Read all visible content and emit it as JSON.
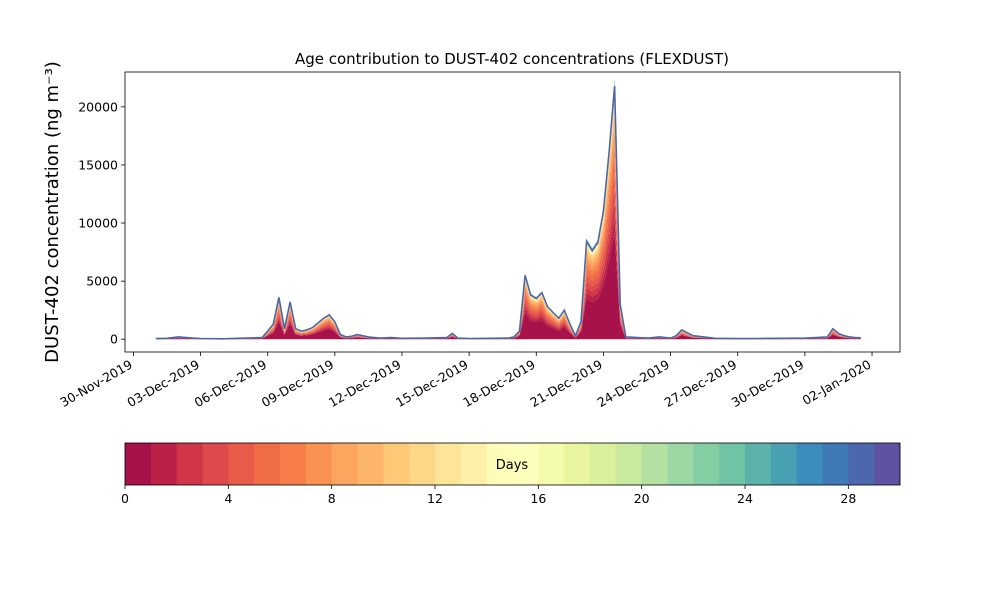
{
  "chart_data": {
    "type": "area",
    "title": "Age contribution to DUST-402 concentrations (FLEXDUST)",
    "ylabel": "DUST-402 concentration (ng m⁻³)",
    "xlabel": "",
    "ylim": [
      -1100,
      23000
    ],
    "xlim": [
      "2019-11-29T15:00",
      "2020-01-03T06:00"
    ],
    "x_ticks": [
      "30-Nov-2019",
      "03-Dec-2019",
      "06-Dec-2019",
      "09-Dec-2019",
      "12-Dec-2019",
      "15-Dec-2019",
      "18-Dec-2019",
      "21-Dec-2019",
      "24-Dec-2019",
      "27-Dec-2019",
      "30-Dec-2019",
      "02-Jan-2020"
    ],
    "y_ticks": [
      0,
      5000,
      10000,
      15000,
      20000
    ],
    "total_series": {
      "name": "Total",
      "color": "#4b67a6",
      "x": [
        "2019-12-01T00:00",
        "2019-12-01T12:00",
        "2019-12-02T00:00",
        "2019-12-02T12:00",
        "2019-12-03T00:00",
        "2019-12-04T00:00",
        "2019-12-05T00:00",
        "2019-12-05T18:00",
        "2019-12-06T00:00",
        "2019-12-06T06:00",
        "2019-12-06T12:00",
        "2019-12-06T18:00",
        "2019-12-07T00:00",
        "2019-12-07T06:00",
        "2019-12-07T12:00",
        "2019-12-07T18:00",
        "2019-12-08T00:00",
        "2019-12-08T12:00",
        "2019-12-08T18:00",
        "2019-12-09T00:00",
        "2019-12-09T06:00",
        "2019-12-09T12:00",
        "2019-12-09T18:00",
        "2019-12-10T00:00",
        "2019-12-10T12:00",
        "2019-12-11T00:00",
        "2019-12-11T12:00",
        "2019-12-12T00:00",
        "2019-12-13T00:00",
        "2019-12-14T00:00",
        "2019-12-14T06:00",
        "2019-12-14T12:00",
        "2019-12-15T00:00",
        "2019-12-16T00:00",
        "2019-12-16T18:00",
        "2019-12-17T00:00",
        "2019-12-17T06:00",
        "2019-12-17T12:00",
        "2019-12-17T18:00",
        "2019-12-18T00:00",
        "2019-12-18T06:00",
        "2019-12-18T12:00",
        "2019-12-18T18:00",
        "2019-12-19T00:00",
        "2019-12-19T06:00",
        "2019-12-19T12:00",
        "2019-12-19T18:00",
        "2019-12-20T00:00",
        "2019-12-20T06:00",
        "2019-12-20T12:00",
        "2019-12-20T18:00",
        "2019-12-21T00:00",
        "2019-12-21T06:00",
        "2019-12-21T12:00",
        "2019-12-21T18:00",
        "2019-12-22T00:00",
        "2019-12-22T12:00",
        "2019-12-23T00:00",
        "2019-12-23T12:00",
        "2019-12-24T00:00",
        "2019-12-24T06:00",
        "2019-12-24T12:00",
        "2019-12-25T00:00",
        "2019-12-26T00:00",
        "2019-12-27T00:00",
        "2019-12-28T00:00",
        "2019-12-29T00:00",
        "2019-12-30T00:00",
        "2019-12-30T12:00",
        "2019-12-31T00:00",
        "2019-12-31T06:00",
        "2019-12-31T12:00",
        "2019-12-31T18:00",
        "2020-01-01T00:00",
        "2020-01-01T06:00",
        "2020-01-01T12:00"
      ],
      "values": [
        50,
        80,
        200,
        120,
        60,
        40,
        100,
        150,
        700,
        1300,
        3600,
        900,
        3200,
        900,
        700,
        800,
        1000,
        1800,
        2100,
        1500,
        400,
        200,
        250,
        400,
        200,
        100,
        150,
        80,
        100,
        150,
        500,
        100,
        60,
        80,
        100,
        200,
        700,
        5500,
        3800,
        3500,
        4000,
        2800,
        2300,
        1800,
        2500,
        1300,
        300,
        1500,
        8400,
        7600,
        8300,
        11000,
        16000,
        21800,
        3000,
        200,
        150,
        100,
        200,
        100,
        300,
        800,
        300,
        80,
        50,
        60,
        80,
        100,
        150,
        200,
        900,
        500,
        300,
        200,
        150,
        120
      ]
    },
    "age_components": [
      {
        "age_days": "0-1",
        "color": "#a8124a",
        "fraction": 0.42
      },
      {
        "age_days": "1-2",
        "color": "#bd2047",
        "fraction": 0.06
      },
      {
        "age_days": "2-3",
        "color": "#d03648",
        "fraction": 0.06
      },
      {
        "age_days": "3-4",
        "color": "#de4a4c",
        "fraction": 0.06
      },
      {
        "age_days": "4-5",
        "color": "#e85b48",
        "fraction": 0.06
      },
      {
        "age_days": "5-6",
        "color": "#f16d45",
        "fraction": 0.06
      },
      {
        "age_days": "6-7",
        "color": "#f67d4a",
        "fraction": 0.05
      },
      {
        "age_days": "7-8",
        "color": "#f99153",
        "fraction": 0.05
      },
      {
        "age_days": "8-9",
        "color": "#fca55f",
        "fraction": 0.04
      },
      {
        "age_days": "9-10",
        "color": "#fdb56b",
        "fraction": 0.03
      },
      {
        "age_days": "10-11",
        "color": "#fec877",
        "fraction": 0.03
      },
      {
        "age_days": "11-12",
        "color": "#fed687",
        "fraction": 0.02
      },
      {
        "age_days": "12-13",
        "color": "#fee497",
        "fraction": 0.02
      },
      {
        "age_days": "13-14",
        "color": "#fef0a8",
        "fraction": 0.01
      },
      {
        "age_days": "14-15",
        "color": "#fffcb9",
        "fraction": 0.01
      },
      {
        "age_days": "15-16",
        "color": "#fdfebb",
        "fraction": 0.005
      },
      {
        "age_days": "16-17",
        "color": "#f5fbad",
        "fraction": 0.005
      },
      {
        "age_days": "17-18",
        "color": "#e9f69f",
        "fraction": 0.005
      },
      {
        "age_days": "18-19",
        "color": "#dbf09a",
        "fraction": 0.004
      },
      {
        "age_days": "19-20",
        "color": "#c8e99e",
        "fraction": 0.004
      },
      {
        "age_days": "20-21",
        "color": "#b4e0a1",
        "fraction": 0.004
      },
      {
        "age_days": "21-22",
        "color": "#9dd7a3",
        "fraction": 0.003
      },
      {
        "age_days": "22-23",
        "color": "#85cea4",
        "fraction": 0.003
      },
      {
        "age_days": "23-24",
        "color": "#6fc4a5",
        "fraction": 0.003
      },
      {
        "age_days": "24-25",
        "color": "#5bb2a9",
        "fraction": 0.002
      },
      {
        "age_days": "25-26",
        "color": "#4aa0b3",
        "fraction": 0.002
      },
      {
        "age_days": "26-27",
        "color": "#3a8dbc",
        "fraction": 0.002
      },
      {
        "age_days": "27-28",
        "color": "#3f79b7",
        "fraction": 0.002
      },
      {
        "age_days": "28-29",
        "color": "#4c67ae",
        "fraction": 0.002
      },
      {
        "age_days": "29-30",
        "color": "#5d52a4",
        "fraction": 0.002
      }
    ],
    "colorbar": {
      "label": "Days",
      "range": [
        0,
        30
      ],
      "ticks": [
        0,
        4,
        8,
        12,
        16,
        20,
        24,
        28
      ],
      "placement": "bottom"
    },
    "grid": false,
    "legend": "none"
  }
}
